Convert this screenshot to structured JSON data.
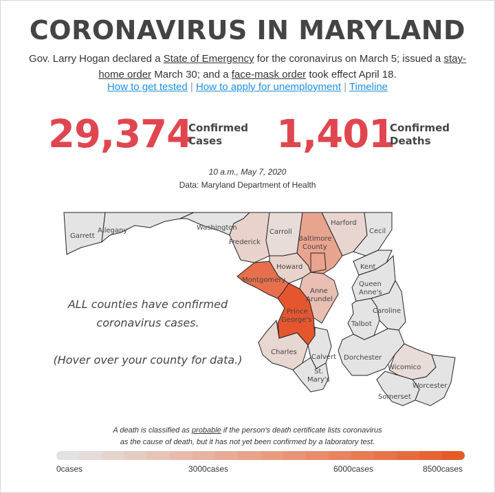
{
  "header": {
    "title": "CORONAVIRUS IN MARYLAND",
    "intro": {
      "t1": "Gov. Larry Hogan declared a ",
      "l1": "State of Emergency",
      "t2": " for the coronavirus on March 5; issued a ",
      "l2": "stay-home order",
      "t3": " March 30; and a ",
      "l3": "face-mask order",
      "t4": " took effect April 18."
    },
    "links": [
      "How to get tested",
      "How to apply for unemployment",
      "Timeline"
    ],
    "separator": "|"
  },
  "stats": {
    "cases": {
      "value": "29,374",
      "label_line1": "Confirmed",
      "label_line2": "Cases"
    },
    "deaths": {
      "value": "1,401",
      "label_line1": "Confirmed",
      "label_line2": "Deaths"
    }
  },
  "timestamp": "10 a.m., May 7, 2020",
  "source": "Data: Maryland Department of Health",
  "map_note": {
    "line1": "ALL counties have confirmed",
    "line2": "coronavirus cases.",
    "line3": "(Hover over your county for data.)"
  },
  "counties": [
    {
      "label1": "Garrett",
      "label2": "",
      "fill": "#e4e4e4"
    },
    {
      "label1": "Allegany",
      "label2": "",
      "fill": "#e4e4e4"
    },
    {
      "label1": "Washington",
      "label2": "",
      "fill": "#e4e4e4"
    },
    {
      "label1": "Frederick",
      "label2": "",
      "fill": "#e9d2cc"
    },
    {
      "label1": "Carroll",
      "label2": "",
      "fill": "#e7dcd8"
    },
    {
      "label1": "Baltimore",
      "label2": "County",
      "fill": "#e9a48f"
    },
    {
      "label1": "Harford",
      "label2": "",
      "fill": "#e8d5cf"
    },
    {
      "label1": "Cecil",
      "label2": "",
      "fill": "#e4e4e4"
    },
    {
      "label1": "Howard",
      "label2": "",
      "fill": "#e8d3cc"
    },
    {
      "label1": "Montgomery",
      "label2": "",
      "fill": "#e76f4c"
    },
    {
      "label1": "Anne",
      "label2": "Arundel",
      "fill": "#e8bfb2"
    },
    {
      "label1": "Prince",
      "label2": "George's",
      "fill": "#e6562e"
    },
    {
      "label1": "Charles",
      "label2": "",
      "fill": "#e8d6d0"
    },
    {
      "label1": "Calvert",
      "label2": "",
      "fill": "#e4e4e4"
    },
    {
      "label1": "St.",
      "label2": "Mary's",
      "fill": "#e4e4e4"
    },
    {
      "label1": "Kent",
      "label2": "",
      "fill": "#e4e4e4"
    },
    {
      "label1": "Queen",
      "label2": "Anne's",
      "fill": "#e4e4e4"
    },
    {
      "label1": "Caroline",
      "label2": "",
      "fill": "#e4e4e4"
    },
    {
      "label1": "Talbot",
      "label2": "",
      "fill": "#e4e4e4"
    },
    {
      "label1": "Dorchester",
      "label2": "",
      "fill": "#e4e4e4"
    },
    {
      "label1": "Wicomico",
      "label2": "",
      "fill": "#e7dcd8"
    },
    {
      "label1": "Somerset",
      "label2": "",
      "fill": "#e4e4e4"
    },
    {
      "label1": "Worcester",
      "label2": "",
      "fill": "#e4e4e4"
    },
    {
      "label1": "",
      "label2": "",
      "fill": "#e9a48f"
    }
  ],
  "footnote": {
    "t1": "A death is classified as ",
    "l1": "probable",
    "t2": " if the person's death certificate lists coronavirus",
    "line2": "as the cause of death, but it has not yet been confirmed by a laboratory test."
  },
  "legend": {
    "labels": [
      "0cases",
      "3000cases",
      "6000cases",
      "8500cases"
    ],
    "colors": [
      "#e2e2e2",
      "#e4dbd8",
      "#e5d3cd",
      "#e6cbc2",
      "#e7c3b7",
      "#e8bbac",
      "#e8b3a1",
      "#e9ab96",
      "#e9a38b",
      "#e99b80",
      "#e99375",
      "#e98b6a",
      "#e9835f",
      "#e87b54",
      "#e87349",
      "#e76b3e",
      "#e66333",
      "#e55b28"
    ]
  }
}
